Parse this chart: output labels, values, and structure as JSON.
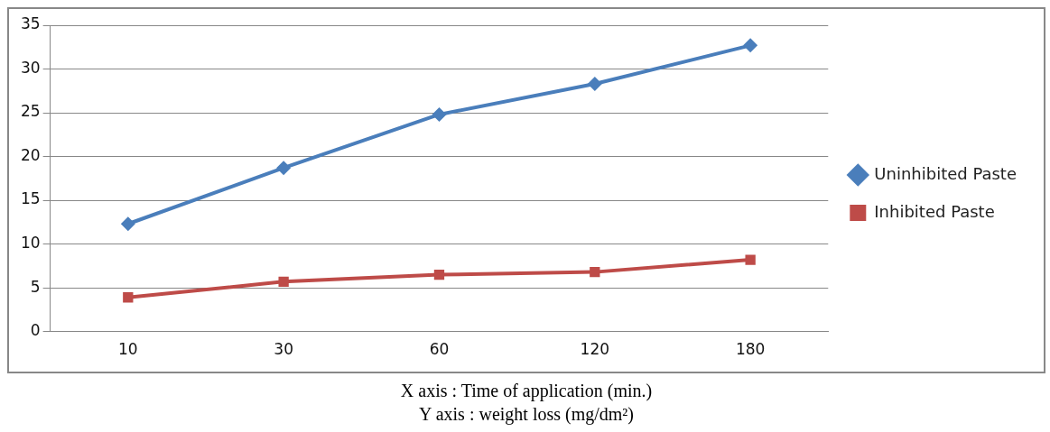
{
  "chart_data": {
    "type": "line",
    "categories": [
      "10",
      "30",
      "60",
      "120",
      "180"
    ],
    "series": [
      {
        "name": "Uninhibited Paste",
        "color": "#4a7ebb",
        "values": [
          12.3,
          18.7,
          24.8,
          28.3,
          32.7
        ],
        "marker": "diamond"
      },
      {
        "name": "Inhibited Paste",
        "color": "#be4b48",
        "values": [
          3.9,
          5.7,
          6.5,
          6.8,
          8.2
        ],
        "marker": "square"
      }
    ],
    "ylim": [
      0,
      35
    ],
    "yticks": [
      0,
      5,
      10,
      15,
      20,
      25,
      30,
      35
    ],
    "grid": "y",
    "legend": "right",
    "line_style": "solid",
    "annotations": [
      "X axis : Time of application (min.)",
      "Y axis : weight loss (mg/dm²)"
    ]
  }
}
